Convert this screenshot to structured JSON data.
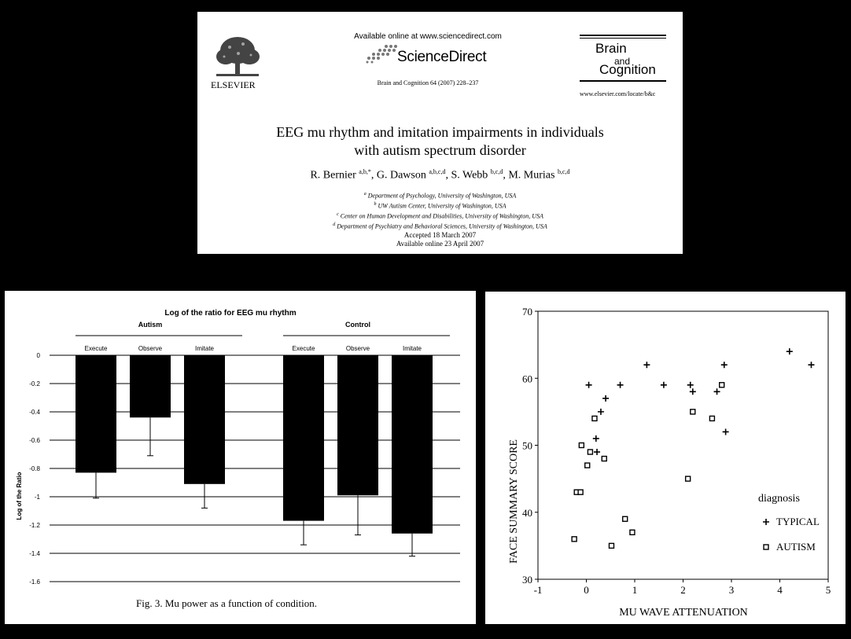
{
  "header": {
    "publisher": "ELSEVIER",
    "available_online": "Available online at www.sciencedirect.com",
    "sciencedirect": "ScienceDirect",
    "citation": "Brain and Cognition 64 (2007) 228–237",
    "journal_line1": "Brain",
    "journal_line2": "and",
    "journal_line3": "Cognition",
    "journal_url": "www.elsevier.com/locate/b&c",
    "title_line1": "EEG mu rhythm and imitation impairments in individuals",
    "title_line2": "with autism spectrum disorder",
    "authors": [
      {
        "name": "R. Bernier ",
        "sup": "a,b,*",
        "sep": ", "
      },
      {
        "name": "G. Dawson ",
        "sup": "a,b,c,d",
        "sep": ", "
      },
      {
        "name": "S. Webb ",
        "sup": "b,c,d",
        "sep": ", "
      },
      {
        "name": "M. Murias ",
        "sup": "b,c,d",
        "sep": ""
      }
    ],
    "affiliations": [
      {
        "sup": "a",
        "text": " Department of Psychology, University of Washington, USA"
      },
      {
        "sup": "b",
        "text": " UW Autism Center, University of Washington, USA"
      },
      {
        "sup": "c",
        "text": " Center on Human Development and Disabilities, University of Washington, USA"
      },
      {
        "sup": "d",
        "text": " Department of Psychiatry and Behavioral Sciences, University of Washington, USA"
      }
    ],
    "accepted": "Accepted 18 March 2007",
    "available": "Available online 23 April 2007"
  },
  "bar_figure": {
    "caption": "Fig. 3.  Mu power as a function of condition."
  },
  "chart_data": [
    {
      "type": "bar",
      "title": "Log of the ratio for EEG mu rhythm",
      "ylabel": "Log of the Ratio",
      "xlabel": "",
      "ylim": [
        -1.6,
        0
      ],
      "yticks": [
        "0",
        "-0.2",
        "-0.4",
        "-0.6",
        "-0.8",
        "-1",
        "-1.2",
        "-1.4",
        "-1.6"
      ],
      "grid": true,
      "groups": [
        {
          "name": "Autism",
          "categories": [
            "Execute",
            "Observe",
            "Imitate"
          ],
          "values": [
            -0.83,
            -0.44,
            -0.91
          ],
          "errors": [
            0.18,
            0.27,
            0.17
          ]
        },
        {
          "name": "Control",
          "categories": [
            "Execute",
            "Observe",
            "Imitate"
          ],
          "values": [
            -1.17,
            -0.99,
            -1.26
          ],
          "errors": [
            0.17,
            0.28,
            0.16
          ]
        }
      ],
      "colors": {
        "bar": "#000000",
        "grid": "#000000"
      }
    },
    {
      "type": "scatter",
      "xlabel": "MU WAVE ATTENUATION",
      "ylabel": "FACE SUMMARY SCORE",
      "xlim": [
        -1,
        5
      ],
      "ylim": [
        30,
        70
      ],
      "xticks": [
        "-1",
        "0",
        "1",
        "2",
        "3",
        "4",
        "5"
      ],
      "yticks": [
        "30",
        "40",
        "50",
        "60",
        "70"
      ],
      "legend_title": "diagnosis",
      "legend_position": "lower-right",
      "series": [
        {
          "name": "TYPICAL",
          "marker": "plus",
          "points": [
            [
              0.05,
              59
            ],
            [
              0.2,
              51
            ],
            [
              0.22,
              49
            ],
            [
              0.3,
              55
            ],
            [
              0.4,
              57
            ],
            [
              0.7,
              59
            ],
            [
              1.25,
              62
            ],
            [
              1.6,
              59
            ],
            [
              2.15,
              59
            ],
            [
              2.2,
              58
            ],
            [
              2.7,
              58
            ],
            [
              2.85,
              62
            ],
            [
              2.88,
              52
            ],
            [
              4.2,
              64
            ],
            [
              4.65,
              62
            ]
          ]
        },
        {
          "name": "AUTISM",
          "marker": "square",
          "points": [
            [
              -0.25,
              36
            ],
            [
              -0.2,
              43
            ],
            [
              -0.12,
              43
            ],
            [
              -0.1,
              50
            ],
            [
              0.02,
              47
            ],
            [
              0.08,
              49
            ],
            [
              0.17,
              54
            ],
            [
              0.37,
              48
            ],
            [
              0.52,
              35
            ],
            [
              0.8,
              39
            ],
            [
              0.95,
              37
            ],
            [
              2.1,
              45
            ],
            [
              2.2,
              55
            ],
            [
              2.6,
              54
            ],
            [
              2.8,
              59
            ]
          ]
        }
      ]
    }
  ]
}
